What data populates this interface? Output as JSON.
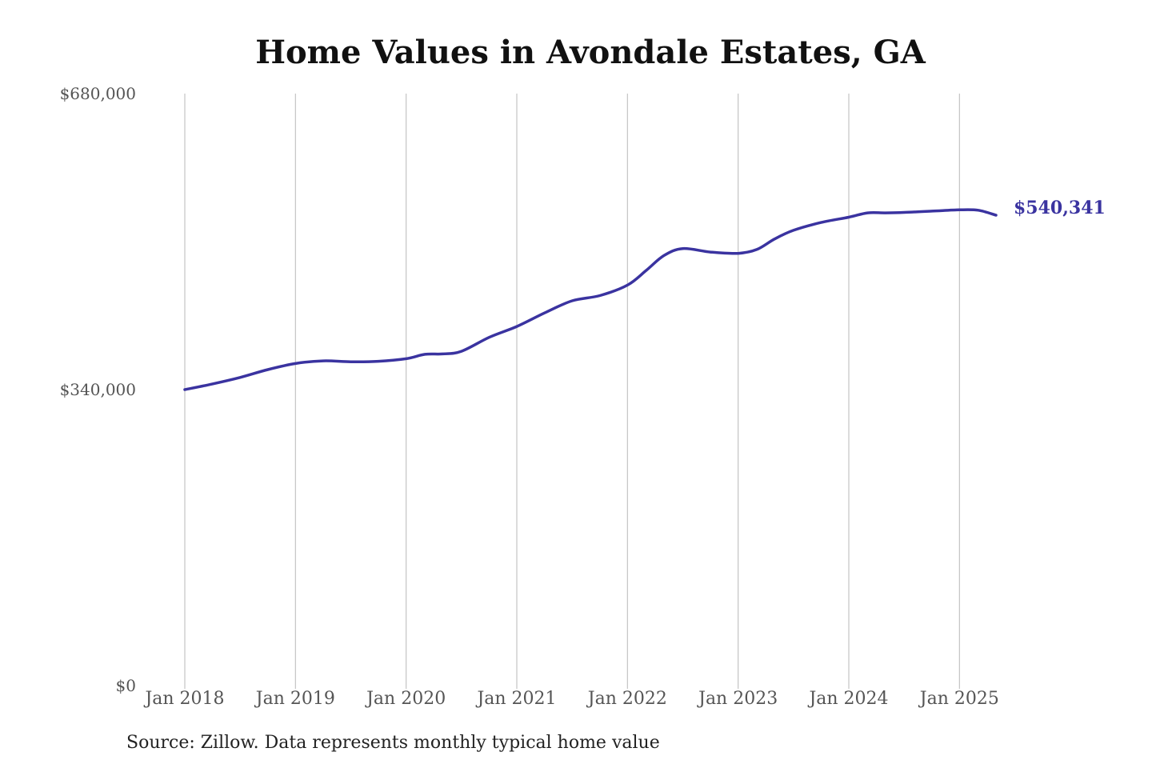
{
  "chart_data": {
    "type": "line",
    "title": "Home Values in Avondale Estates, GA",
    "source": "Source: Zillow. Data represents monthly typical home value",
    "y_ticks": [
      {
        "value": 680000,
        "label": "$680,000"
      },
      {
        "value": 340000,
        "label": "$340,000"
      },
      {
        "value": 0,
        "label": "$0"
      }
    ],
    "ylim": [
      0,
      680000
    ],
    "x_ticks": [
      {
        "value": 2018.0,
        "label": "Jan 2018"
      },
      {
        "value": 2019.0,
        "label": "Jan 2019"
      },
      {
        "value": 2020.0,
        "label": "Jan 2020"
      },
      {
        "value": 2021.0,
        "label": "Jan 2021"
      },
      {
        "value": 2022.0,
        "label": "Jan 2022"
      },
      {
        "value": 2023.0,
        "label": "Jan 2023"
      },
      {
        "value": 2024.0,
        "label": "Jan 2024"
      },
      {
        "value": 2025.0,
        "label": "Jan 2025"
      }
    ],
    "xlim": [
      2018.0,
      2025.33
    ],
    "grid": "vertical",
    "line_color": "#3a33a0",
    "end_label": "$540,341",
    "series": [
      {
        "x": [
          2018.0,
          2018.25,
          2018.5,
          2018.75,
          2019.0,
          2019.25,
          2019.5,
          2019.75,
          2020.0,
          2020.17,
          2020.33,
          2020.5,
          2020.75,
          2021.0,
          2021.25,
          2021.5,
          2021.75,
          2022.0,
          2022.17,
          2022.33,
          2022.5,
          2022.75,
          2023.0,
          2023.17,
          2023.33,
          2023.5,
          2023.75,
          2024.0,
          2024.17,
          2024.33,
          2024.5,
          2024.75,
          2025.0,
          2025.17,
          2025.33
        ],
        "y": [
          340000,
          346500,
          354000,
          363000,
          370000,
          373000,
          372000,
          372500,
          375500,
          380500,
          381000,
          384000,
          400000,
          412500,
          428000,
          442000,
          448000,
          460000,
          477000,
          494000,
          502000,
          498000,
          496500,
          501000,
          513000,
          523000,
          532000,
          538000,
          543000,
          543000,
          543500,
          545000,
          546500,
          546000,
          540341
        ]
      }
    ]
  }
}
